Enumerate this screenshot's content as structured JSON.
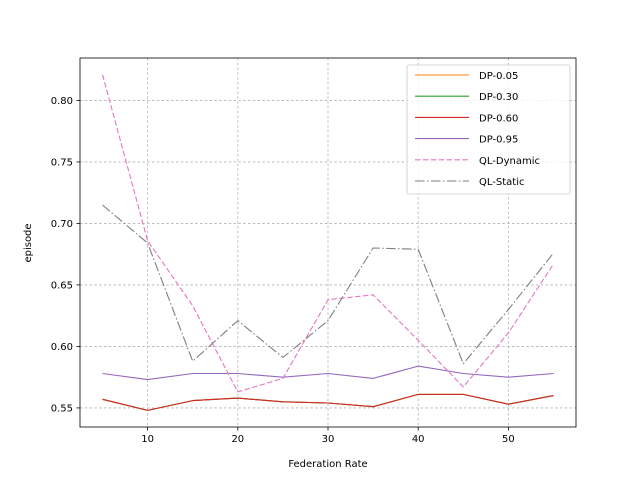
{
  "chart_data": {
    "type": "line",
    "title": "",
    "xlabel": "Federation Rate",
    "ylabel": "episode",
    "xlim": [
      2.5,
      57.5
    ],
    "ylim": [
      0.5345,
      0.8345
    ],
    "xticks": [
      10,
      20,
      30,
      40,
      50
    ],
    "yticks": [
      0.55,
      0.6,
      0.65,
      0.7,
      0.75,
      0.8
    ],
    "ytick_labels": [
      "0.55",
      "0.60",
      "0.65",
      "0.70",
      "0.75",
      "0.80"
    ],
    "grid": true,
    "legend_position": "upper right",
    "x": [
      5,
      10,
      15,
      20,
      25,
      30,
      35,
      40,
      45,
      50,
      55
    ],
    "series": [
      {
        "name": "DP-0.05",
        "color": "#ff7f0e",
        "style": "solid",
        "values": [
          0.557,
          0.548,
          0.556,
          0.558,
          0.555,
          0.554,
          0.551,
          0.561,
          0.561,
          0.553,
          0.56
        ]
      },
      {
        "name": "DP-0.30",
        "color": "#2ca02c",
        "style": "solid",
        "values": [
          0.557,
          0.548,
          0.556,
          0.558,
          0.555,
          0.554,
          0.551,
          0.561,
          0.561,
          0.553,
          0.56
        ]
      },
      {
        "name": "DP-0.60",
        "color": "#d62728",
        "style": "solid",
        "values": [
          0.557,
          0.548,
          0.556,
          0.558,
          0.555,
          0.554,
          0.551,
          0.561,
          0.561,
          0.553,
          0.56
        ]
      },
      {
        "name": "DP-0.95",
        "color": "#9467bd",
        "style": "solid",
        "values": [
          0.578,
          0.573,
          0.578,
          0.578,
          0.575,
          0.578,
          0.574,
          0.584,
          0.578,
          0.575,
          0.578
        ]
      },
      {
        "name": "QL-Dynamic",
        "color": "#e377c2",
        "style": "dashed",
        "values": [
          0.821,
          0.686,
          0.633,
          0.563,
          0.574,
          0.638,
          0.642,
          0.605,
          0.567,
          0.611,
          0.667
        ]
      },
      {
        "name": "QL-Static",
        "color": "#7f7f7f",
        "style": "dashdot",
        "values": [
          0.715,
          0.684,
          0.588,
          0.621,
          0.591,
          0.621,
          0.68,
          0.679,
          0.586,
          0.63,
          0.676
        ]
      }
    ]
  }
}
